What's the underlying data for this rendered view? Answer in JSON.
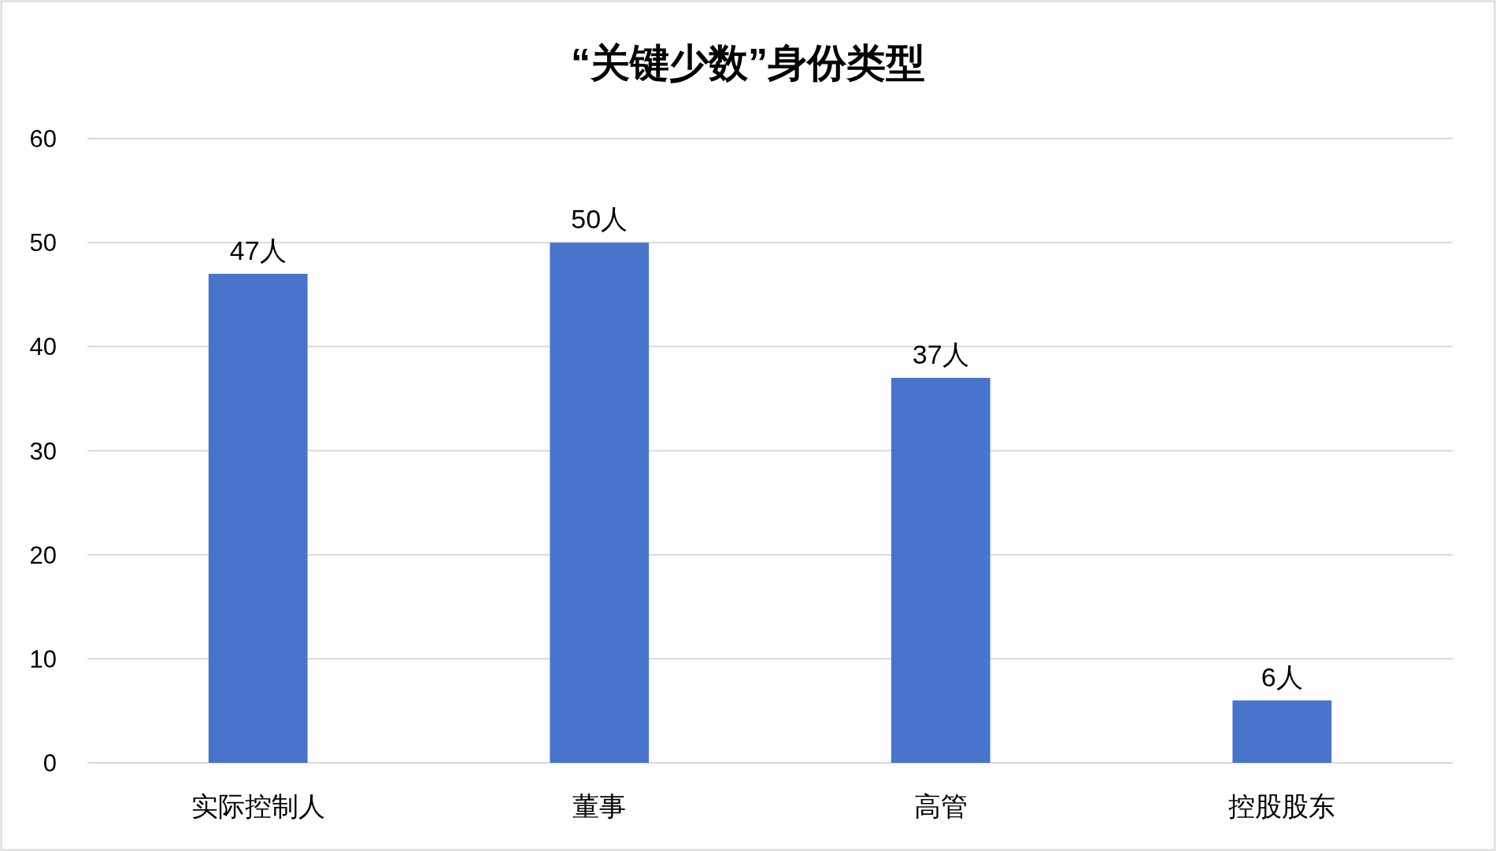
{
  "chart_data": {
    "type": "bar",
    "title": "“关键少数”身份类型",
    "categories": [
      "实际控制人",
      "董事",
      "高管",
      "控股股东"
    ],
    "values": [
      47,
      50,
      37,
      6
    ],
    "value_labels": [
      "47人",
      "50人",
      "37人",
      "6人"
    ],
    "color": "#4874cb",
    "ylim": [
      0,
      60
    ],
    "yticks": [
      0,
      10,
      20,
      30,
      40,
      50,
      60
    ],
    "grid": "y"
  }
}
